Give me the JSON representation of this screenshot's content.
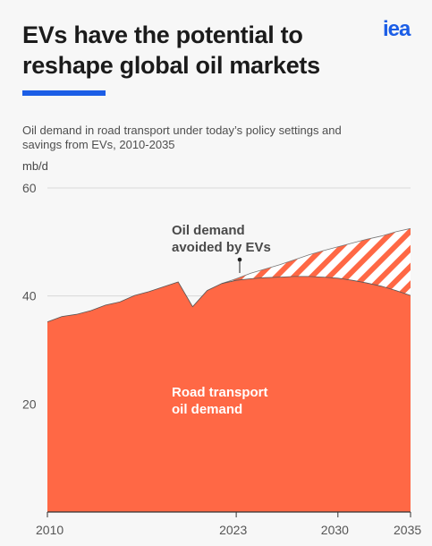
{
  "header": {
    "title_line1": "EVs have the potential to",
    "title_line2": "reshape global oil markets",
    "logo": "iea",
    "brand_color": "#1c5ee6"
  },
  "subtitle": {
    "line1": "Oil demand in road transport under today’s policy settings and",
    "line2": "savings from EVs, 2010-2035"
  },
  "chart_data": {
    "type": "area",
    "ylabel": "mb/d",
    "ylim": [
      0,
      60
    ],
    "xlim": [
      2010,
      2035
    ],
    "y_ticks": [
      20,
      40,
      60
    ],
    "x_ticks": [
      2010,
      2023,
      2030,
      2035
    ],
    "grid": true,
    "series": [
      {
        "name": "Road transport oil demand",
        "label_lines": [
          "Road transport",
          "oil demand"
        ],
        "color": "#ff6845",
        "x": [
          2010,
          2011,
          2012,
          2013,
          2014,
          2015,
          2016,
          2017,
          2018,
          2019,
          2020,
          2021,
          2022,
          2023,
          2024,
          2025,
          2026,
          2027,
          2028,
          2029,
          2030,
          2031,
          2032,
          2033,
          2034,
          2035
        ],
        "values": [
          35.2,
          36.2,
          36.6,
          37.3,
          38.3,
          38.9,
          40.1,
          40.8,
          41.7,
          42.6,
          38.0,
          41.0,
          42.3,
          42.9,
          43.2,
          43.4,
          43.5,
          43.6,
          43.6,
          43.5,
          43.3,
          42.9,
          42.4,
          41.8,
          41.0,
          40.1
        ]
      },
      {
        "name": "Oil demand avoided by EVs",
        "label_lines": [
          "Oil demand",
          "avoided by EVs"
        ],
        "fill": "hatched",
        "color": "#ff6845",
        "x": [
          2022,
          2023,
          2024,
          2025,
          2026,
          2027,
          2028,
          2029,
          2030,
          2031,
          2032,
          2033,
          2034,
          2035
        ],
        "values": [
          0,
          0.3,
          1.0,
          1.6,
          2.3,
          3.1,
          4.0,
          4.9,
          5.8,
          6.9,
          8.1,
          9.3,
          10.9,
          12.4
        ]
      }
    ]
  }
}
